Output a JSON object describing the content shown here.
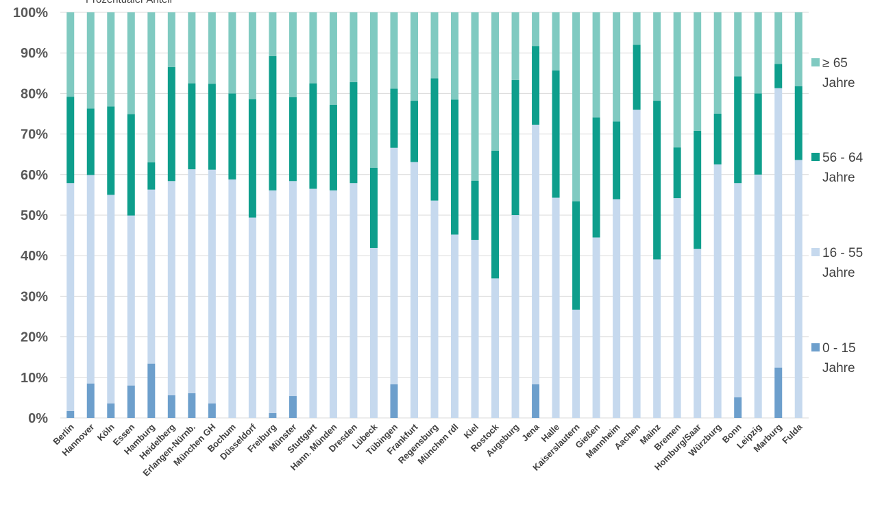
{
  "chart_data": {
    "type": "bar",
    "stacked": true,
    "ylabel": "Prozentualer Anteil",
    "ylim": [
      0,
      100
    ],
    "yticks": [
      "0%",
      "10%",
      "20%",
      "30%",
      "40%",
      "50%",
      "60%",
      "70%",
      "80%",
      "90%",
      "100%"
    ],
    "grid": true,
    "legend_position": "right",
    "categories": [
      "Berlin",
      "Hannover",
      "Köln",
      "Essen",
      "Hamburg",
      "Heidelberg",
      "Erlangen-Nürnb.",
      "München GH",
      "Bochum",
      "Düsseldorf",
      "Freiburg",
      "Münster",
      "Stuttgart",
      "Hann. Münden",
      "Dresden",
      "Lübeck",
      "Tübingen",
      "Frankfurt",
      "Regensburg",
      "München rdl",
      "Kiel",
      "Rostock",
      "Augsburg",
      "Jena",
      "Halle",
      "Kaiserslautern",
      "Gießen",
      "Mannheim",
      "Aachen",
      "Mainz",
      "Bremen",
      "Homburg/Saar",
      "Würzburg",
      "Bonn",
      "Leipzig",
      "Marburg",
      "Fulda"
    ],
    "series": [
      {
        "name": "0 - 15 Jahre",
        "color": "#6d9fcc",
        "values": [
          1.7,
          8.5,
          3.6,
          8.0,
          13.4,
          5.6,
          6.1,
          3.6,
          0,
          0,
          1.2,
          5.4,
          0,
          0,
          0,
          0,
          8.3,
          0,
          0,
          0,
          0,
          0,
          0,
          8.3,
          0,
          0,
          0,
          0,
          0,
          0,
          0,
          0,
          0,
          5.1,
          0,
          12.4,
          0
        ]
      },
      {
        "name": "16 - 55 Jahre",
        "color": "#c6d9ee",
        "values": [
          56.2,
          51.4,
          51.4,
          41.9,
          42.9,
          52.8,
          55.2,
          57.6,
          58.8,
          49.4,
          54.9,
          53.0,
          56.5,
          56.1,
          57.9,
          41.9,
          58.3,
          63.1,
          53.6,
          45.2,
          43.9,
          34.4,
          50.0,
          64.0,
          54.3,
          26.7,
          44.5,
          53.9,
          76.0,
          39.1,
          54.2,
          41.7,
          62.5,
          52.8,
          60.0,
          68.9,
          63.6
        ]
      },
      {
        "name": "56 - 64 Jahre",
        "color": "#0e9e8c",
        "values": [
          21.3,
          16.4,
          21.8,
          25.0,
          6.7,
          28.1,
          21.2,
          21.2,
          21.2,
          29.2,
          33.1,
          20.7,
          26.0,
          21.1,
          24.9,
          19.8,
          14.6,
          15.1,
          30.1,
          33.3,
          14.6,
          31.5,
          33.3,
          19.4,
          31.4,
          26.7,
          29.6,
          19.2,
          16.0,
          39.1,
          12.5,
          29.1,
          12.5,
          26.3,
          20.0,
          6.0,
          18.2
        ]
      },
      {
        "name": "≥ 65 Jahre",
        "color": "#80cac1",
        "values": [
          20.8,
          23.7,
          23.2,
          25.1,
          37.0,
          13.5,
          17.5,
          17.6,
          20.0,
          21.4,
          10.8,
          20.9,
          17.5,
          22.8,
          17.2,
          38.3,
          18.8,
          21.8,
          16.3,
          21.5,
          41.5,
          34.1,
          16.7,
          8.3,
          14.3,
          46.6,
          25.9,
          26.9,
          8.0,
          21.8,
          33.3,
          29.2,
          25.0,
          15.8,
          20.0,
          12.7,
          18.2
        ]
      }
    ],
    "legend": [
      {
        "line1": "≥ 65",
        "line2": "Jahre",
        "color": "#80cac1"
      },
      {
        "line1": "56 - 64",
        "line2": "Jahre",
        "color": "#0e9e8c"
      },
      {
        "line1": "16 - 55",
        "line2": "Jahre",
        "color": "#c6d9ee"
      },
      {
        "line1": "0 - 15",
        "line2": "Jahre",
        "color": "#6d9fcc"
      }
    ]
  }
}
